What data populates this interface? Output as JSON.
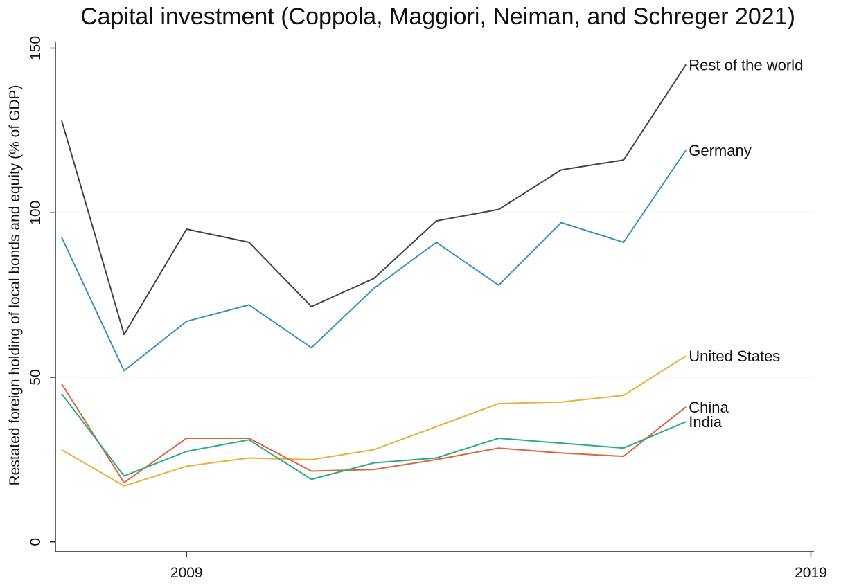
{
  "chart_data": {
    "type": "line",
    "title": "Capital investment (Coppola, Maggiori, Neiman, and Schreger 2021)",
    "xlabel": "",
    "ylabel": "Restated foreign holding of local bonds and equity (% of GDP)",
    "xlim": [
      2006.9,
      2019.05
    ],
    "ylim": [
      -3,
      152
    ],
    "xticks": [
      2009,
      2019
    ],
    "yticks": [
      0,
      50,
      100,
      150
    ],
    "grid": true,
    "legend": "none",
    "x": [
      2007,
      2008,
      2009,
      2010,
      2011,
      2012,
      2013,
      2014,
      2015,
      2016,
      2017
    ],
    "series": [
      {
        "name": "Rest of the world",
        "color": "#444444",
        "values": [
          128,
          63,
          95,
          91,
          71.5,
          80,
          97.5,
          101,
          113,
          116,
          145
        ]
      },
      {
        "name": "Germany",
        "color": "#3b8fc1",
        "values": [
          92.5,
          52,
          67,
          72,
          59,
          77,
          91,
          78,
          97,
          91,
          119
        ]
      },
      {
        "name": "United States",
        "color": "#e8b13c",
        "values": [
          28,
          17,
          23,
          25.5,
          25,
          28,
          35,
          42,
          42.5,
          44.5,
          56.5
        ]
      },
      {
        "name": "China",
        "color": "#d9663f",
        "values": [
          48,
          18,
          31.5,
          31.5,
          21.5,
          22,
          25,
          28.5,
          27,
          26,
          41
        ]
      },
      {
        "name": "India",
        "color": "#2aaa8a",
        "values": [
          45,
          20,
          27.5,
          31,
          19,
          24,
          25.5,
          31.5,
          30,
          28.5,
          36.5
        ]
      }
    ]
  }
}
